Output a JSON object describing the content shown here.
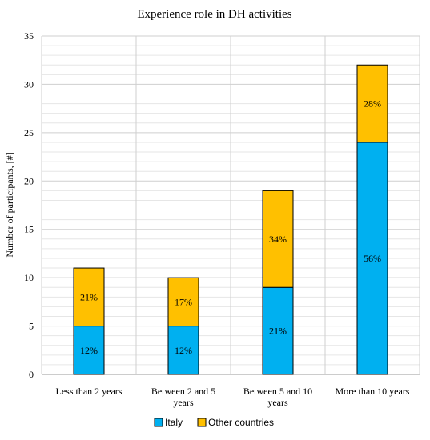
{
  "chart_data": {
    "type": "bar",
    "stacked": true,
    "title": "Experience role in DH activities",
    "xlabel": "",
    "ylabel": "Number of participants, [#]",
    "ylim": [
      0,
      35
    ],
    "ytick_step": 5,
    "ytick_labels": [
      "0",
      "5",
      "10",
      "15",
      "20",
      "25",
      "30",
      "35"
    ],
    "minor_grid_step": 1,
    "grid": true,
    "legend_position": "bottom",
    "categories": [
      [
        "Less than 2 years"
      ],
      [
        "Between 2 and 5",
        "years"
      ],
      [
        "Between 5 and 10",
        "years"
      ],
      [
        "More than 10 years"
      ]
    ],
    "series": [
      {
        "name": "Italy",
        "color": "#00B0F0",
        "values": [
          5,
          5,
          9,
          24
        ],
        "labels": [
          "12%",
          "12%",
          "21%",
          "56%"
        ]
      },
      {
        "name": "Other countries",
        "color": "#FFC000",
        "values": [
          6,
          5,
          10,
          8
        ],
        "labels": [
          "21%",
          "17%",
          "34%",
          "28%"
        ]
      }
    ]
  }
}
